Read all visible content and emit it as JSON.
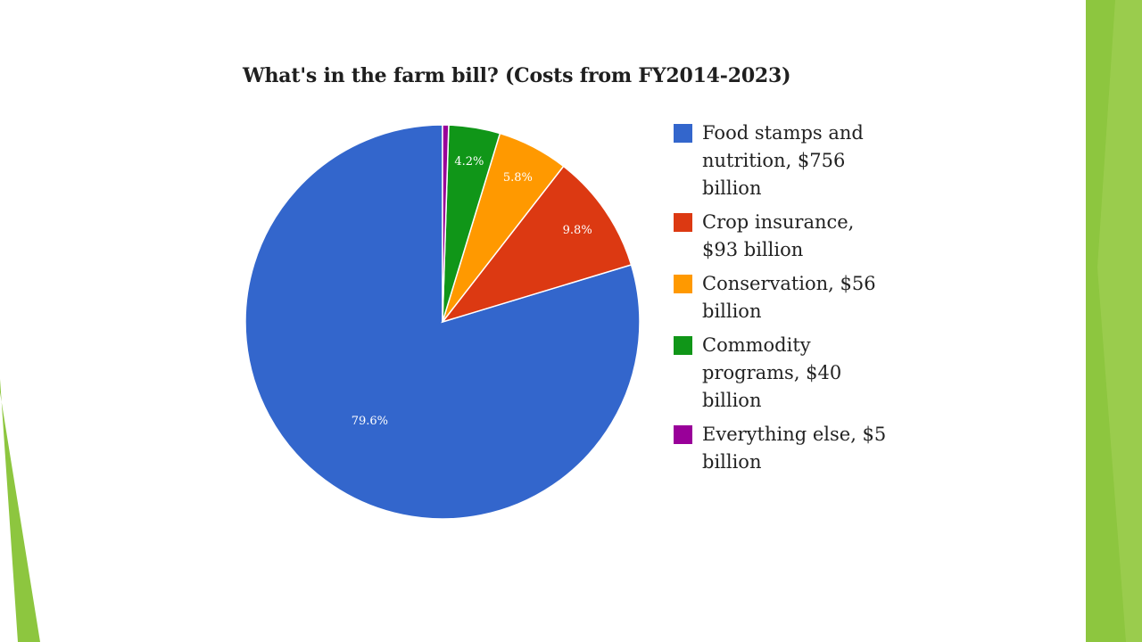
{
  "chart_data": {
    "type": "pie",
    "title": "What's in the farm bill? (Costs from FY2014-2023)",
    "slices": [
      {
        "legend": "Food stamps and nutrition, $756 billion",
        "label": "79.6%",
        "value": 79.6,
        "color": "#3366cc"
      },
      {
        "legend": "Crop insurance, $93 billion",
        "label": "9.8%",
        "value": 9.8,
        "color": "#dc3912"
      },
      {
        "legend": "Conservation, $56 billion",
        "label": "5.8%",
        "value": 5.8,
        "color": "#ff9900"
      },
      {
        "legend": "Commodity programs, $40 billion",
        "label": "4.2%",
        "value": 4.2,
        "color": "#109618"
      },
      {
        "legend": "Everything else, $5 billion",
        "label": "",
        "value": 0.5,
        "color": "#990099"
      }
    ],
    "legend_position": "right"
  },
  "theme": {
    "accent_green": "#8dc63f",
    "accent_green_light": "#a6d15a"
  }
}
